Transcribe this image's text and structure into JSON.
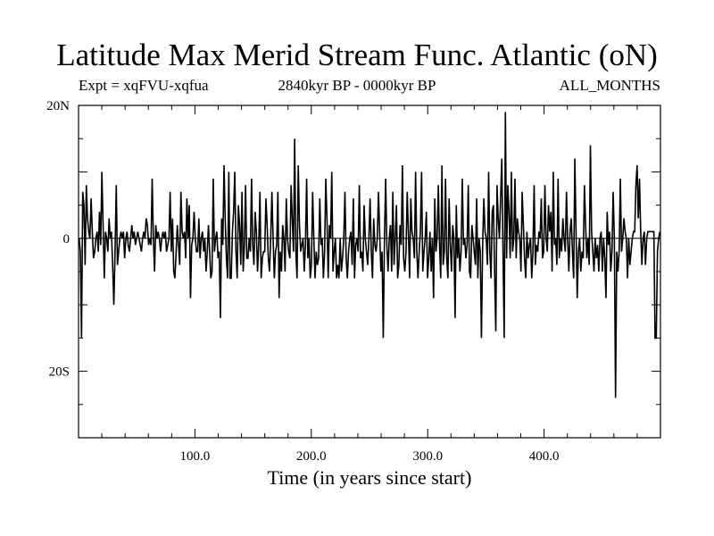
{
  "chart_data": {
    "type": "line",
    "title": "Latitude Max Merid Stream Func. Atlantic (oN)",
    "subtitle_left": "Expt = xqFVU-xqfua",
    "subtitle_center": "2840kyr BP - 0000kyr BP",
    "subtitle_right": "ALL_MONTHS",
    "xlabel": "Time (in years since start)",
    "ylabel": "",
    "xlim": [
      0,
      500
    ],
    "ylim": [
      -30,
      20
    ],
    "x_ticks": [
      100,
      200,
      300,
      400
    ],
    "x_tick_labels": [
      "100.0",
      "200.0",
      "300.0",
      "400.0"
    ],
    "y_ticks": [
      20,
      0,
      -20
    ],
    "y_tick_labels": [
      "20N",
      "0",
      "20S"
    ],
    "grid": false,
    "series": [
      {
        "values": [
          0,
          -2,
          -15,
          7,
          5,
          -4,
          8,
          3,
          1,
          0,
          6,
          1,
          -3,
          -2,
          0,
          1,
          -2,
          4,
          -1,
          10,
          2,
          -6,
          1,
          0,
          -2,
          3,
          0,
          1,
          -4,
          -10,
          -2,
          8,
          -4,
          -2,
          0,
          1,
          0,
          1,
          -3,
          0,
          1,
          -1,
          -2,
          0,
          2,
          0,
          1,
          -1,
          0,
          1,
          0,
          -1,
          -2,
          0,
          1,
          0,
          3,
          2,
          -1,
          0,
          -1,
          9,
          0,
          -5,
          2,
          0,
          1,
          0,
          -2,
          0,
          1,
          0,
          1,
          -2,
          -1,
          0,
          7,
          -2,
          3,
          -5,
          -6,
          -2,
          2,
          -1,
          -4,
          7,
          1,
          0,
          1,
          -3,
          6,
          0,
          5,
          -9,
          -1,
          0,
          4,
          0,
          -2,
          -2,
          3,
          -3,
          0,
          1,
          -2,
          0,
          -5,
          -2,
          2,
          -2,
          -6,
          -5,
          9,
          -2,
          0,
          1,
          -3,
          -2,
          -12,
          3,
          -1,
          11,
          3,
          -3,
          -6,
          10,
          -6,
          -6,
          1,
          4,
          10,
          -2,
          -6,
          5,
          2,
          -4,
          7,
          -5,
          -1,
          8,
          -3,
          -3,
          0,
          -2,
          9,
          -1,
          -4,
          4,
          1,
          -5,
          -1,
          7,
          -6,
          -3,
          -2,
          -2,
          6,
          2,
          -3,
          -5,
          0,
          7,
          0,
          -6,
          -2,
          -1,
          7,
          -9,
          -2,
          -5,
          2,
          0,
          -5,
          6,
          0,
          -2,
          -3,
          8,
          3,
          -2,
          15,
          -2,
          -6,
          11,
          2,
          -2,
          -1,
          0,
          -5,
          -1,
          9,
          -3,
          0,
          -6,
          -4,
          7,
          0,
          -6,
          -2,
          -4,
          -3,
          6,
          -1,
          0,
          -6,
          -2,
          9,
          3,
          -6,
          2,
          0,
          10,
          -5,
          -2,
          0,
          -6,
          -4,
          -6,
          0,
          -5,
          -3,
          0,
          7,
          -3,
          -6,
          -2,
          0,
          1,
          -4,
          6,
          -6,
          -1,
          0,
          -2,
          8,
          -3,
          -2,
          -5,
          5,
          0,
          -2,
          -4,
          0,
          6,
          -2,
          -6,
          3,
          -1,
          -2,
          0,
          7,
          1,
          -5,
          -2,
          -15,
          0,
          9,
          -1,
          -5,
          0,
          2,
          -5,
          7,
          -4,
          0,
          5,
          -6,
          -4,
          2,
          -1,
          11,
          -3,
          -5,
          -2,
          7,
          1,
          -6,
          6,
          1,
          0,
          -3,
          10,
          -2,
          -6,
          -2,
          1,
          10,
          -5,
          -2,
          0,
          4,
          -6,
          -3,
          1,
          -5,
          0,
          -9,
          6,
          -2,
          0,
          8,
          -1,
          -6,
          11,
          -4,
          -2,
          9,
          -3,
          -6,
          6,
          -1,
          -5,
          2,
          0,
          -12,
          5,
          -3,
          0,
          -5,
          -2,
          9,
          -1,
          0,
          -3,
          -1,
          8,
          -5,
          -6,
          2,
          0,
          -2,
          -4,
          6,
          -6,
          0,
          -2,
          -15,
          -1,
          6,
          1,
          0,
          -4,
          10,
          -2,
          -6,
          4,
          5,
          -5,
          -14,
          8,
          3,
          0,
          6,
          12,
          -2,
          -15,
          19,
          -3,
          8,
          4,
          -3,
          10,
          -2,
          0,
          9,
          -3,
          3,
          1,
          0,
          -5,
          7,
          2,
          -3,
          -6,
          1,
          -3,
          -1,
          0,
          -6,
          -2,
          8,
          -4,
          -1,
          -2,
          1,
          0,
          6,
          -3,
          -2,
          8,
          0,
          -2,
          5,
          1,
          4,
          -5,
          10,
          -1,
          0,
          -4,
          9,
          -3,
          0,
          -2,
          3,
          0,
          -2,
          7,
          0,
          -5,
          1,
          3,
          -2,
          -6,
          12,
          1,
          -9,
          -2,
          0,
          -5,
          -2,
          -3,
          8,
          2,
          -3,
          0,
          -4,
          14,
          1,
          -2,
          -5,
          0,
          -3,
          -1,
          -5,
          0,
          1,
          -5,
          0,
          -3,
          -9,
          4,
          -1,
          1,
          -5,
          -2,
          7,
          0,
          -24,
          -2,
          -5,
          -2,
          9,
          -2,
          0,
          3,
          1,
          0,
          -6,
          0,
          -4,
          -2,
          0,
          1,
          1,
          8,
          11,
          3,
          9,
          1,
          -4,
          0,
          1,
          -4,
          0,
          1,
          1,
          1,
          1,
          1,
          1,
          -15,
          -15,
          -2,
          0,
          1
        ]
      }
    ]
  }
}
